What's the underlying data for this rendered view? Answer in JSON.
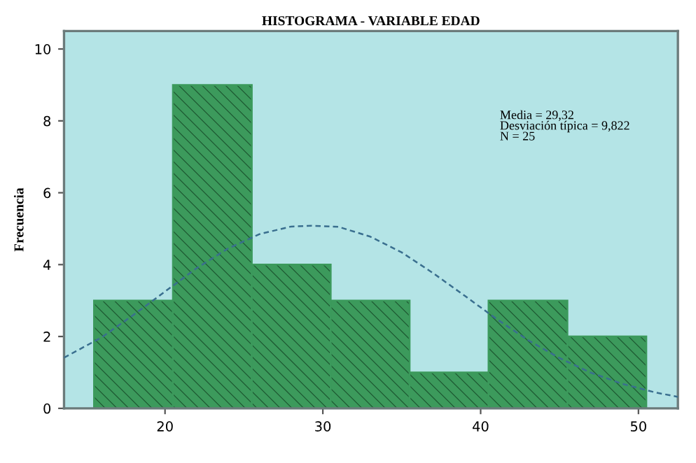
{
  "chart_data": {
    "type": "histogram",
    "title": "HISTOGRAMA - VARIABLE EDAD",
    "ylabel": "Frecuencia",
    "bins": [
      15.5,
      20.5,
      25.5,
      30.5,
      35.5,
      40.5,
      45.5,
      50.5
    ],
    "values": [
      3,
      9,
      4,
      3,
      1,
      3,
      2
    ],
    "color": "#3c9a5c",
    "series": [
      {
        "type": "line",
        "color": "#3a6f8f",
        "line_style": "dashed",
        "x": [
          13.6,
          16,
          18,
          20,
          22,
          24,
          26,
          28,
          29.3,
          31,
          33,
          35,
          37,
          39,
          41,
          43,
          45,
          47,
          49,
          51,
          52.5
        ],
        "values": [
          1.41,
          1.98,
          2.6,
          3.25,
          3.9,
          4.45,
          4.85,
          5.06,
          5.08,
          5.05,
          4.78,
          4.34,
          3.76,
          3.13,
          2.49,
          1.9,
          1.4,
          0.99,
          0.68,
          0.45,
          0.32
        ]
      }
    ],
    "annotations": [
      "Media = 29,32",
      "Desviación típica = 9,822",
      "N = 25"
    ],
    "xlim": [
      13.6,
      52.5
    ],
    "xticks": [
      20,
      30,
      40,
      50
    ],
    "ylim": [
      0,
      10.5
    ],
    "yticks": [
      0,
      2,
      4,
      6,
      8,
      10
    ],
    "grid": false,
    "legend": false
  }
}
